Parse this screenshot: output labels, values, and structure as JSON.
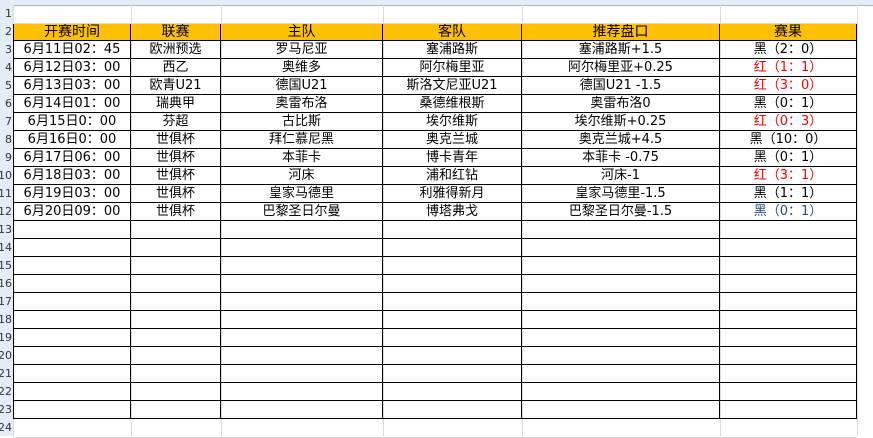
{
  "headers": [
    "开赛时间",
    "联赛",
    "主队",
    "客队",
    "推荐盘口",
    "赛果"
  ],
  "rows": [
    [
      "6月11日02：45",
      "欧洲预选",
      "罗马尼亚",
      "塞浦路斯",
      "塞浦路斯+1.5",
      "黑（2：0）",
      "black"
    ],
    [
      "6月12日03：00",
      "西乙",
      "奥维多",
      "阿尔梅里亚",
      "阿尔梅里亚+0.25",
      "红（1：1）",
      "red"
    ],
    [
      "6月13日03：00",
      "欧青U21",
      "德国U21",
      "斯洛文尼亚U21",
      "德国U21 -1.5",
      "红（3：0）",
      "red"
    ],
    [
      "6月14日01：00",
      "瑞典甲",
      "奥雷布洛",
      "桑德维根斯",
      "奥雷布洛0",
      "黑（0：1）",
      "black"
    ],
    [
      "6月15日0：00",
      "芬超",
      "古比斯",
      "埃尔维斯",
      "埃尔维斯+0.25",
      "红（0：3）",
      "red"
    ],
    [
      "6月16日0：00",
      "世俱杯",
      "拜仁慕尼黑",
      "奥克兰城",
      "奥克兰城+4.5",
      "黑（10：0）",
      "black"
    ],
    [
      "6月17日06：00",
      "世俱杯",
      "本菲卡",
      "博卡青年",
      "本菲卡 -0.75",
      "黑（0：1）",
      "black"
    ],
    [
      "6月18日03：00",
      "世俱杯",
      "河床",
      "浦和红钻",
      "河床-1",
      "红（3：1）",
      "red"
    ],
    [
      "6月19日03：00",
      "世俱杯",
      "皇家马德里",
      "利雅得新月",
      "皇家马德里-1.5",
      "黑（1：1）",
      "black"
    ],
    [
      "6月20日09：00",
      "世俱杯",
      "巴黎圣日尔曼",
      "博塔弗戈",
      "巴黎圣日尔曼-1.5",
      "黑（0：1）",
      "blue"
    ]
  ],
  "row_numbers": [
    "1",
    "2",
    "3",
    "4",
    "5",
    "6",
    "7",
    "8",
    "9",
    "10",
    "11",
    "12",
    "13",
    "14",
    "15",
    "16",
    "17",
    "18",
    "19",
    "20",
    "21",
    "22",
    "23",
    "24"
  ],
  "colors": {
    "header_fill": "#ffc000",
    "red": "#ff0000",
    "black": "#000000",
    "blue": "#1f4e8c"
  }
}
